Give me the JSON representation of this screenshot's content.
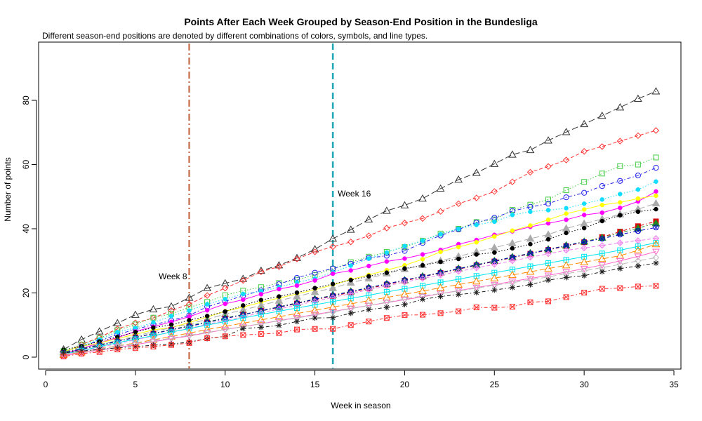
{
  "chart_data": {
    "type": "line",
    "title": "Points After Each Week Grouped by Season-End Position in the Bundesliga",
    "subtitle": "Different season-end positions are denoted by different combinations of colors, symbols, and line types.",
    "xlabel": "Week in season",
    "ylabel": "Number of points",
    "xlim": [
      0,
      35
    ],
    "ylim": [
      -2,
      92
    ],
    "xticks": [
      0,
      5,
      10,
      15,
      20,
      25,
      30,
      35
    ],
    "yticks": [
      0,
      20,
      40,
      60,
      80
    ],
    "grid": false,
    "legend": "none",
    "annotations": [
      {
        "label": "Week 8",
        "x": 8,
        "color": "#cd8060",
        "dash": "dash-dot"
      },
      {
        "label": "Week 16",
        "x": 16,
        "color": "#20a8b8",
        "dash": "dashed"
      }
    ],
    "x": [
      1,
      2,
      3,
      4,
      5,
      6,
      7,
      8,
      9,
      10,
      11,
      12,
      13,
      14,
      15,
      16,
      17,
      18,
      19,
      20,
      21,
      22,
      23,
      24,
      25,
      26,
      27,
      28,
      29,
      30,
      31,
      32,
      33,
      34
    ],
    "series": [
      {
        "color": "#333333",
        "marker": "triangle",
        "dash": "longdash",
        "values": [
          2.4,
          5.5,
          8.0,
          10.6,
          13.2,
          14.9,
          15.8,
          18.5,
          21.5,
          23.0,
          24.4,
          26.9,
          28.6,
          30.9,
          33.6,
          36.9,
          39.7,
          42.9,
          45.6,
          47.3,
          49.4,
          52.5,
          55.3,
          57.4,
          60.2,
          63.1,
          64.5,
          67.5,
          70.1,
          72.6,
          75.2,
          77.8,
          80.5,
          82.8
        ]
      },
      {
        "color": "#ff3333",
        "marker": "diamond",
        "dash": "dashed",
        "values": [
          1.4,
          3.9,
          6.2,
          8.8,
          10.7,
          12.2,
          14.5,
          16.5,
          19.2,
          21.5,
          23.9,
          26.6,
          28.2,
          30.6,
          32.8,
          34.4,
          35.9,
          37.8,
          40.2,
          41.8,
          43.2,
          45.4,
          47.8,
          49.6,
          51.6,
          54.6,
          57.6,
          59.4,
          61.4,
          64.1,
          65.6,
          67.3,
          69.0,
          70.6
        ]
      },
      {
        "color": "#44cc44",
        "marker": "square-open",
        "dash": "dotted",
        "values": [
          1.9,
          3.9,
          5.9,
          8.4,
          10.2,
          12.3,
          13.5,
          15.5,
          17.2,
          19.3,
          20.7,
          21.8,
          23.1,
          24.1,
          25.6,
          27.5,
          29.6,
          31.3,
          32.8,
          34.3,
          36.3,
          38.5,
          40.0,
          42.1,
          42.9,
          45.9,
          47.5,
          49.1,
          52.0,
          54.6,
          57.2,
          59.5,
          60.0,
          62.2
        ]
      },
      {
        "color": "#2222ee",
        "marker": "circle-open",
        "dash": "dotdash",
        "values": [
          1.6,
          3.3,
          5.2,
          7.0,
          8.7,
          10.1,
          11.4,
          13.0,
          15.7,
          17.4,
          19.1,
          20.8,
          22.7,
          24.7,
          26.3,
          27.6,
          29.1,
          30.9,
          31.6,
          33.1,
          35.6,
          37.9,
          39.8,
          41.9,
          43.4,
          45.5,
          46.8,
          47.8,
          49.8,
          51.2,
          53.3,
          54.9,
          56.6,
          59.0
        ]
      },
      {
        "color": "#11ddff",
        "marker": "dot",
        "dash": "dotted",
        "values": [
          1.8,
          3.4,
          5.5,
          7.8,
          9.1,
          10.8,
          12.8,
          14.5,
          16.5,
          18.1,
          19.7,
          20.5,
          21.8,
          23.3,
          24.5,
          26.4,
          28.5,
          30.7,
          32.6,
          34.6,
          36.3,
          38.3,
          40.0,
          41.2,
          42.2,
          44.3,
          45.3,
          45.8,
          46.4,
          47.8,
          49.1,
          50.8,
          52.2,
          54.7
        ]
      },
      {
        "color": "#ff00ff",
        "marker": "dot",
        "dash": "solid",
        "values": [
          1.1,
          2.7,
          4.4,
          6.1,
          8.0,
          9.5,
          11.0,
          12.6,
          14.6,
          16.6,
          17.9,
          19.6,
          21.2,
          22.3,
          23.9,
          26.0,
          27.0,
          28.4,
          29.8,
          30.7,
          32.0,
          33.4,
          35.2,
          36.5,
          38.1,
          39.2,
          40.6,
          41.7,
          42.8,
          44.3,
          45.0,
          46.5,
          48.5,
          51.6
        ]
      },
      {
        "color": "#ffff00",
        "marker": "dot",
        "dash": "solid",
        "values": [
          1.7,
          3.4,
          4.4,
          5.8,
          7.1,
          8.5,
          9.2,
          10.8,
          12.5,
          14.3,
          15.6,
          17.1,
          18.4,
          19.7,
          21.0,
          22.5,
          24.2,
          25.6,
          27.1,
          28.6,
          30.5,
          32.8,
          34.3,
          35.8,
          37.6,
          39.4,
          41.0,
          42.8,
          44.7,
          46.0,
          47.4,
          48.2,
          49.4,
          50.3
        ]
      },
      {
        "color": "#aaaaaa",
        "marker": "triangle-filled",
        "dash": "longdash",
        "values": [
          1.0,
          2.5,
          3.8,
          5.2,
          6.6,
          7.9,
          9.2,
          10.3,
          11.8,
          13.4,
          14.7,
          16.1,
          17.6,
          18.9,
          20.3,
          21.5,
          23.2,
          24.5,
          26.1,
          27.4,
          28.7,
          30.0,
          31.4,
          32.8,
          34.1,
          35.5,
          36.9,
          38.2,
          40.1,
          41.6,
          43.0,
          44.5,
          46.1,
          47.9
        ]
      },
      {
        "color": "#000000",
        "marker": "dot",
        "dash": "dotted",
        "values": [
          2.3,
          3.4,
          4.9,
          6.3,
          7.8,
          9.2,
          10.1,
          11.5,
          12.8,
          14.2,
          16.1,
          17.8,
          18.9,
          20.1,
          21.5,
          22.8,
          24.0,
          25.2,
          26.3,
          27.6,
          28.6,
          29.7,
          30.6,
          32.0,
          32.6,
          33.9,
          35.2,
          36.7,
          38.7,
          40.2,
          42.4,
          44.2,
          45.3,
          46.1
        ]
      },
      {
        "color": "#dd0000",
        "marker": "square-filled",
        "dash": "dotdash",
        "values": [
          1.2,
          2.4,
          3.6,
          4.9,
          6.2,
          7.3,
          8.5,
          9.6,
          10.8,
          12.0,
          13.2,
          14.4,
          15.5,
          16.7,
          17.9,
          19.0,
          20.2,
          21.4,
          22.6,
          23.8,
          25.0,
          26.2,
          27.4,
          28.6,
          29.8,
          31.0,
          32.2,
          33.4,
          34.6,
          35.8,
          37.4,
          39.1,
          40.8,
          42.3
        ]
      },
      {
        "color": "#228822",
        "marker": "triangle-filled",
        "dash": "dotdash",
        "values": [
          1.5,
          2.7,
          3.9,
          5.0,
          6.2,
          7.4,
          8.6,
          9.8,
          11.0,
          12.2,
          13.3,
          14.5,
          15.7,
          16.9,
          18.1,
          19.3,
          20.5,
          21.7,
          22.8,
          24.0,
          25.2,
          26.4,
          27.6,
          28.8,
          30.0,
          31.2,
          32.4,
          33.6,
          34.8,
          36.0,
          37.2,
          38.7,
          40.2,
          41.7
        ]
      },
      {
        "color": "#0000cc",
        "marker": "circle-cross",
        "dash": "dotdash",
        "values": [
          1.3,
          2.5,
          3.7,
          4.9,
          6.1,
          7.3,
          8.5,
          9.6,
          10.8,
          12.0,
          13.2,
          14.4,
          15.6,
          16.8,
          18.0,
          19.2,
          20.4,
          21.6,
          22.8,
          24.0,
          25.1,
          26.3,
          27.5,
          28.7,
          29.9,
          31.1,
          32.3,
          33.5,
          34.7,
          35.9,
          36.9,
          38.2,
          39.3,
          40.4
        ]
      },
      {
        "color": "#ee82ee",
        "marker": "diamond-plus",
        "dash": "dashed",
        "values": [
          0.6,
          1.8,
          3.0,
          4.2,
          5.4,
          6.6,
          7.8,
          9.0,
          10.2,
          11.4,
          12.6,
          13.8,
          15.0,
          16.2,
          17.4,
          18.6,
          19.8,
          21.0,
          22.2,
          23.4,
          24.5,
          25.6,
          26.7,
          27.8,
          28.9,
          30.0,
          31.1,
          32.2,
          33.3,
          34.0,
          34.8,
          35.6,
          36.3,
          37.0
        ]
      },
      {
        "color": "#00e5ee",
        "marker": "square-cross",
        "dash": "solid",
        "values": [
          1.0,
          2.0,
          3.3,
          4.5,
          5.6,
          6.7,
          7.8,
          8.9,
          10.0,
          11.1,
          12.2,
          13.3,
          14.3,
          15.3,
          16.3,
          17.3,
          18.3,
          19.3,
          20.3,
          21.3,
          22.3,
          23.3,
          24.3,
          25.3,
          26.3,
          27.3,
          28.3,
          29.3,
          30.3,
          31.3,
          32.3,
          33.3,
          34.5,
          35.6
        ]
      },
      {
        "color": "#ff8800",
        "marker": "triangle",
        "dash": "longdash",
        "values": [
          0.7,
          1.5,
          2.6,
          3.5,
          4.4,
          5.4,
          6.4,
          7.5,
          8.6,
          9.6,
          10.6,
          11.6,
          12.6,
          13.6,
          14.6,
          15.6,
          16.6,
          17.6,
          18.6,
          19.6,
          20.6,
          21.6,
          22.6,
          23.6,
          24.6,
          25.6,
          26.6,
          27.6,
          28.6,
          29.6,
          30.6,
          31.6,
          33.3,
          35.2
        ]
      },
      {
        "color": "#ff66cc",
        "marker": "triangle-down",
        "dash": "solid",
        "values": [
          0.5,
          1.3,
          2.2,
          3.0,
          3.9,
          4.8,
          5.7,
          6.6,
          7.6,
          8.6,
          9.5,
          10.4,
          11.4,
          12.3,
          13.3,
          14.2,
          15.2,
          16.1,
          17.0,
          17.9,
          18.8,
          19.8,
          20.7,
          21.7,
          22.6,
          23.6,
          24.5,
          25.5,
          26.5,
          27.6,
          28.7,
          30.0,
          31.4,
          32.9
        ]
      },
      {
        "color": "#bbbbbb",
        "marker": "diamond",
        "dash": "longdash",
        "values": [
          0.9,
          1.7,
          2.5,
          3.4,
          4.2,
          5.1,
          5.9,
          6.8,
          7.7,
          8.6,
          9.5,
          10.4,
          11.3,
          12.2,
          13.1,
          14.1,
          15.1,
          16.1,
          17.1,
          18.1,
          19.1,
          19.8,
          20.6,
          21.5,
          22.4,
          23.2,
          24.1,
          25.0,
          26.0,
          26.9,
          27.9,
          28.9,
          30.0,
          31.0
        ]
      },
      {
        "color": "#222222",
        "marker": "asterisk",
        "dash": "dotdash",
        "values": [
          1.3,
          1.9,
          2.4,
          2.9,
          3.3,
          3.7,
          4.1,
          4.7,
          5.8,
          6.5,
          8.9,
          9.3,
          9.9,
          11.1,
          12.2,
          12.3,
          13.7,
          14.8,
          15.5,
          16.4,
          18.0,
          18.9,
          19.5,
          20.1,
          20.9,
          21.7,
          22.6,
          24.0,
          24.8,
          25.4,
          26.6,
          27.6,
          28.4,
          29.3
        ]
      },
      {
        "color": "#ff3333",
        "marker": "square-x",
        "dash": "dotdash",
        "values": [
          0.2,
          1.1,
          1.6,
          2.4,
          2.8,
          3.3,
          3.8,
          4.4,
          5.9,
          6.5,
          6.9,
          7.2,
          7.5,
          8.6,
          8.8,
          8.8,
          10.0,
          11.1,
          12.2,
          13.1,
          13.2,
          13.7,
          14.3,
          15.5,
          15.4,
          15.7,
          17.1,
          17.4,
          18.7,
          20.1,
          21.3,
          21.5,
          22.0,
          22.2
        ]
      }
    ]
  }
}
